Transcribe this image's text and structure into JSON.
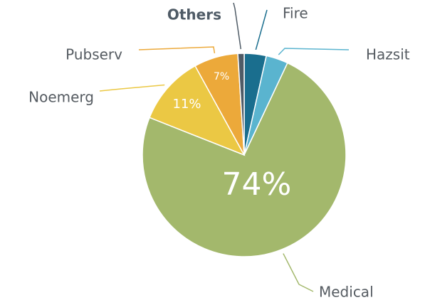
{
  "chart_data": {
    "type": "pie",
    "categories": [
      "Fire",
      "Hazsit",
      "Medical",
      "Noemerg",
      "Pubserv",
      "Others"
    ],
    "values": [
      3.5,
      3.5,
      74,
      11,
      7,
      1
    ],
    "value_labels": [
      null,
      null,
      "74%",
      "11%",
      "7%",
      null
    ],
    "colors": [
      "#1a6e8e",
      "#5ab4cf",
      "#a3b86c",
      "#ebc844",
      "#eca93a",
      "#4f5b66"
    ],
    "start_angle": 0,
    "direction": "clockwise"
  }
}
